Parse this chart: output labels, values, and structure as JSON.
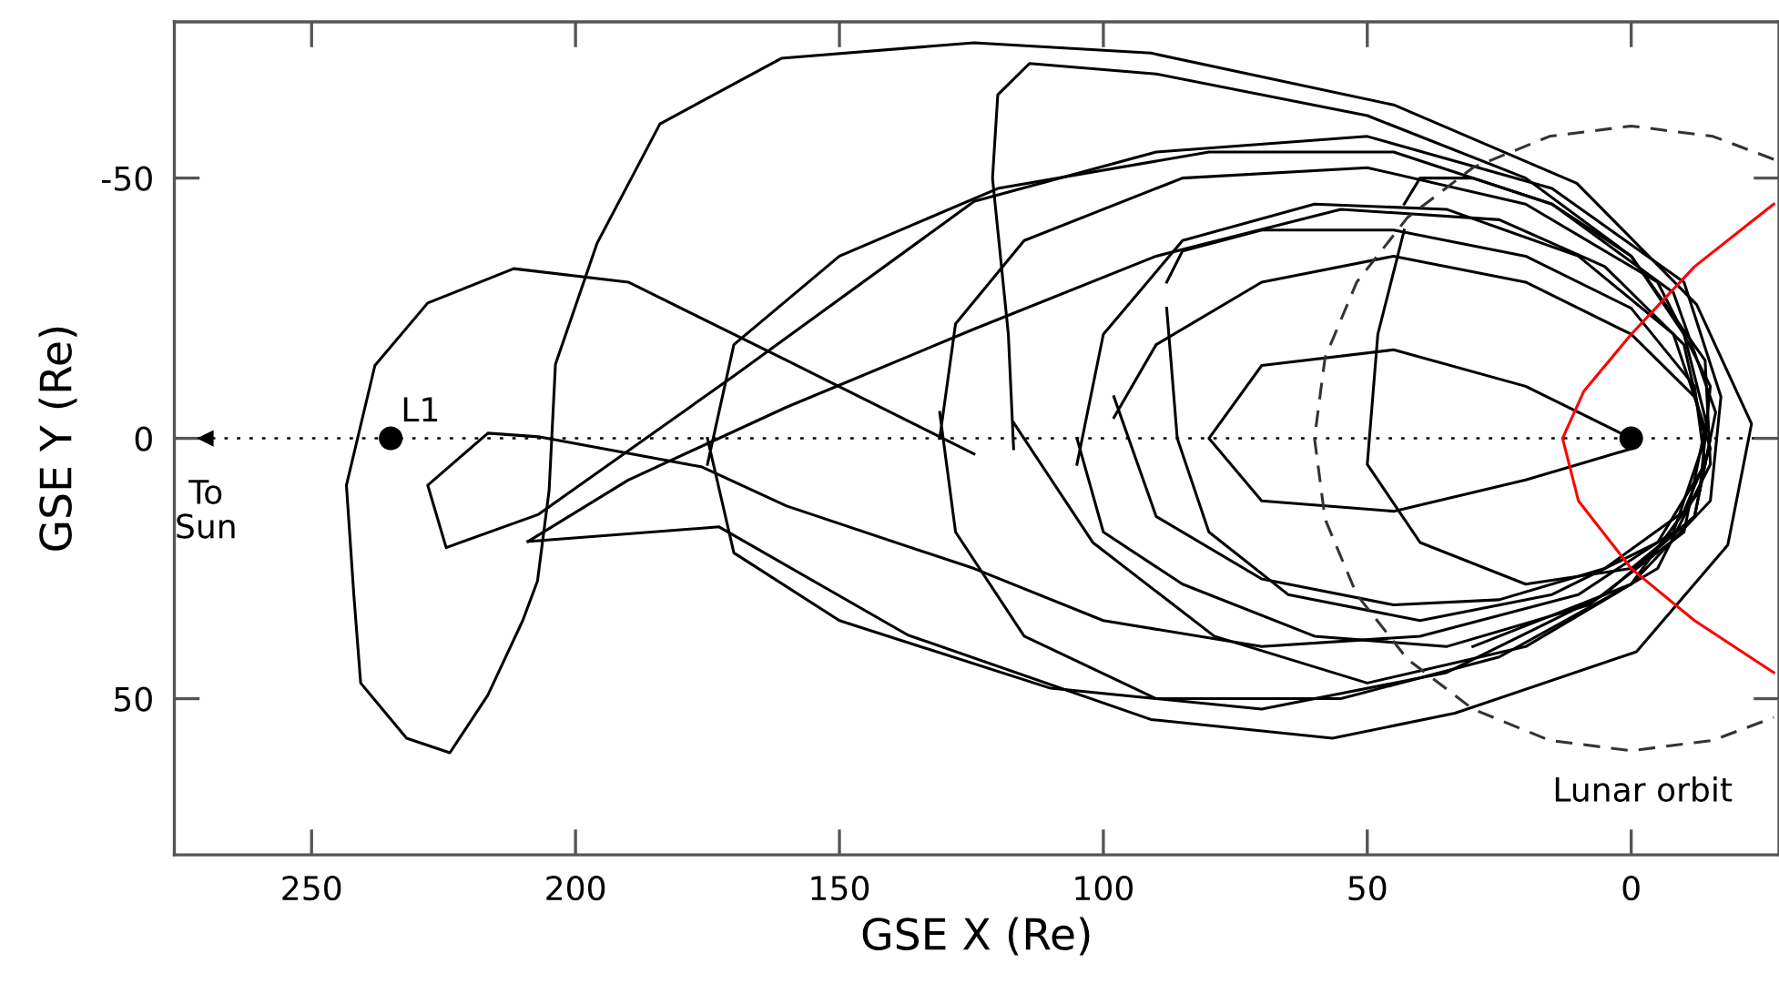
{
  "chart_data": {
    "type": "line",
    "xlabel": "GSE X (Re)",
    "ylabel": "GSE Y (Re)",
    "xlim": [
      276,
      -28
    ],
    "ylim": [
      80,
      -80
    ],
    "xticks": [
      250,
      200,
      150,
      100,
      50,
      0
    ],
    "yticks": [
      -50,
      0,
      50
    ],
    "grid": false,
    "legend": false,
    "marker": "none",
    "line_style": "solid",
    "ref_lines": [
      {
        "axis": "y",
        "value": 0,
        "label": null,
        "color": "#000000",
        "line_style": "dotted"
      }
    ],
    "annotations": [
      {
        "text": "To\nSun",
        "x": 270,
        "y": 0
      },
      "Lunar orbit"
    ],
    "series": [
      {
        "type": "line",
        "color": "#000000",
        "x": [
          124.5,
          160,
          190,
          211.7,
          228,
          238,
          243.4,
          242,
          240.7,
          232,
          223.8,
          216.6,
          210,
          207.2,
          205,
          203.8,
          195.9,
          184,
          161,
          124.5,
          91,
          44.8,
          10.3,
          -12.4,
          -22.8,
          -18.3,
          -1,
          33.4,
          56.6,
          91,
          137,
          172.8,
          209
        ],
        "values": [
          3,
          -15,
          -30,
          -32.6,
          -26,
          -14,
          9,
          30,
          47,
          57.6,
          60.4,
          49.3,
          35,
          27.4,
          10,
          -14.2,
          -37.5,
          -60.4,
          -73,
          -76,
          -74,
          -64,
          -49,
          -25.7,
          -2.8,
          20.5,
          41,
          52.8,
          57.6,
          54,
          37.8,
          17,
          19.8
        ]
      },
      {
        "type": "line",
        "color": "#000000",
        "x": [
          209,
          190,
          160,
          124.5,
          90,
          55,
          25,
          5,
          -10,
          -14,
          -8,
          10,
          40,
          70,
          100,
          124.5,
          160,
          176,
          207,
          216.6,
          228,
          224.5,
          207,
          170,
          124.5,
          90,
          50,
          15,
          -10,
          -17,
          -15,
          0,
          30
        ],
        "values": [
          19.8,
          8,
          -6,
          -21,
          -35,
          -44,
          -42,
          -33,
          -18,
          0,
          18,
          30,
          38,
          40,
          35,
          25,
          13,
          5.5,
          -0.3,
          -1,
          9,
          21,
          14.6,
          -12,
          -45.5,
          -55,
          -58,
          -48,
          -30,
          -8,
          12,
          28,
          40
        ]
      },
      {
        "type": "line",
        "color": "#000000",
        "x": [
          98,
          90,
          70,
          45,
          20,
          0,
          -12,
          -15,
          -10,
          5,
          25,
          45,
          70,
          90,
          98
        ],
        "values": [
          -4,
          -18,
          -30,
          -35,
          -30,
          -20,
          -8,
          2,
          14,
          25,
          31,
          32,
          27,
          15,
          -8
        ]
      },
      {
        "type": "line",
        "color": "#000000",
        "x": [
          105,
          100,
          85,
          60,
          35,
          10,
          -8,
          -14,
          -10,
          8,
          35,
          60,
          85,
          100,
          105
        ],
        "values": [
          5,
          -20,
          -38,
          -45,
          -44,
          -35,
          -20,
          -2,
          18,
          32,
          40,
          38,
          28,
          18,
          0
        ]
      },
      {
        "type": "line",
        "color": "#000000",
        "x": [
          175,
          170,
          150,
          120,
          80,
          45,
          15,
          -8,
          -16,
          -12,
          5,
          35,
          70,
          110,
          150,
          170,
          175
        ],
        "values": [
          5,
          -18,
          -35,
          -48,
          -55,
          -55,
          -45,
          -28,
          -5,
          15,
          30,
          45,
          52,
          48,
          35,
          22,
          0
        ]
      },
      {
        "type": "line",
        "color": "#000000",
        "x": [
          117,
          102,
          79,
          50,
          20,
          -5,
          -15,
          -14,
          0,
          20,
          50,
          90,
          114,
          120,
          121,
          118,
          117
        ],
        "values": [
          -3,
          20,
          38,
          47,
          40,
          25,
          5,
          -15,
          -35,
          -50,
          -62,
          -70,
          -72,
          -66,
          -50,
          -20,
          2
        ]
      },
      {
        "type": "line",
        "color": "#000000",
        "x": [
          131,
          128,
          115,
          85,
          50,
          20,
          -5,
          -15,
          -13,
          0,
          25,
          55,
          90,
          115,
          128,
          131
        ],
        "values": [
          0,
          -22,
          -38,
          -50,
          -52,
          -45,
          -30,
          -10,
          10,
          28,
          42,
          50,
          50,
          38,
          18,
          -5
        ]
      },
      {
        "type": "line",
        "color": "#000000",
        "x": [
          88,
          85,
          70,
          45,
          20,
          0,
          -12,
          -14,
          -5,
          15,
          40,
          65,
          80,
          86,
          88
        ],
        "values": [
          -30,
          -36,
          -40,
          -40,
          -35,
          -25,
          -10,
          5,
          20,
          30,
          35,
          30,
          18,
          0,
          -25
        ]
      },
      {
        "type": "line",
        "color": "#000000",
        "x": [
          43,
          40,
          30,
          15,
          0,
          -10,
          -15,
          -12,
          0,
          20,
          40,
          50,
          48,
          43
        ],
        "values": [
          -45,
          -50,
          -50,
          -45,
          -35,
          -20,
          0,
          15,
          25,
          28,
          20,
          5,
          -20,
          -40
        ]
      },
      {
        "type": "line",
        "color": "#000000",
        "x": [
          0,
          20,
          45,
          70,
          80,
          70,
          45,
          20,
          0
        ],
        "values": [
          0,
          -10,
          -17,
          -14,
          0,
          12,
          14,
          8,
          2
        ]
      },
      {
        "type": "line",
        "color": "#ff0000",
        "x": [
          -27,
          -12,
          0,
          9,
          13,
          10,
          0,
          -12,
          -27
        ],
        "values": [
          -45,
          -33,
          -20,
          -9,
          0,
          12,
          25,
          35,
          45
        ]
      },
      {
        "color": "#333333",
        "line_style": "dashed",
        "x": [
          -27,
          -15.5,
          0,
          15.5,
          30,
          42.4,
          52,
          58,
          60,
          58,
          52,
          42.4,
          30,
          15.5,
          0,
          -15.5,
          -27
        ],
        "values": [
          -53.6,
          -58,
          -60,
          -58,
          -52,
          -42.4,
          -30,
          -15.5,
          0,
          15.5,
          30,
          42.4,
          52,
          58,
          60,
          58,
          53.6
        ]
      },
      {
        "type": "scatter",
        "name": "L1",
        "color": "#000000",
        "marker": "circle",
        "x": [
          235
        ],
        "values": [
          0
        ]
      },
      {
        "type": "scatter",
        "color": "#000000",
        "marker": "circle",
        "x": [
          0
        ],
        "values": [
          0
        ]
      }
    ]
  }
}
